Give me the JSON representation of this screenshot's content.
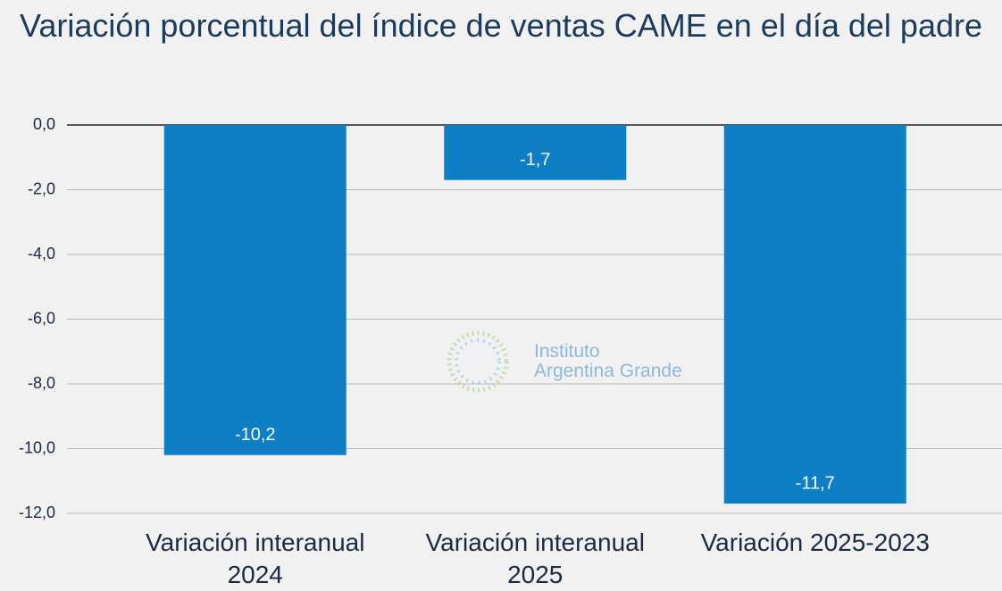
{
  "chart_data": {
    "type": "bar",
    "title": "Variación porcentual del índice de ventas CAME en el día del padre",
    "categories": [
      "Variación interanual 2024",
      "Variación interanual 2025",
      "Variación 2025-2023"
    ],
    "values": [
      -10.2,
      -1.7,
      -11.7
    ],
    "value_labels": [
      "-10,2",
      "-1,7",
      "-11,7"
    ],
    "color": "#0e7fc4",
    "ylim": [
      -12,
      0
    ],
    "yticks": [
      {
        "value": 0,
        "label": "0,0"
      },
      {
        "value": -2,
        "label": "-2,0"
      },
      {
        "value": -4,
        "label": "-4,0"
      },
      {
        "value": -6,
        "label": "-6,0"
      },
      {
        "value": -8,
        "label": "-8,0"
      },
      {
        "value": -10,
        "label": "-10,0"
      },
      {
        "value": -12,
        "label": "-12,0"
      }
    ],
    "grid": true,
    "annotations": [
      "Instituto",
      "Argentina Grande"
    ]
  }
}
